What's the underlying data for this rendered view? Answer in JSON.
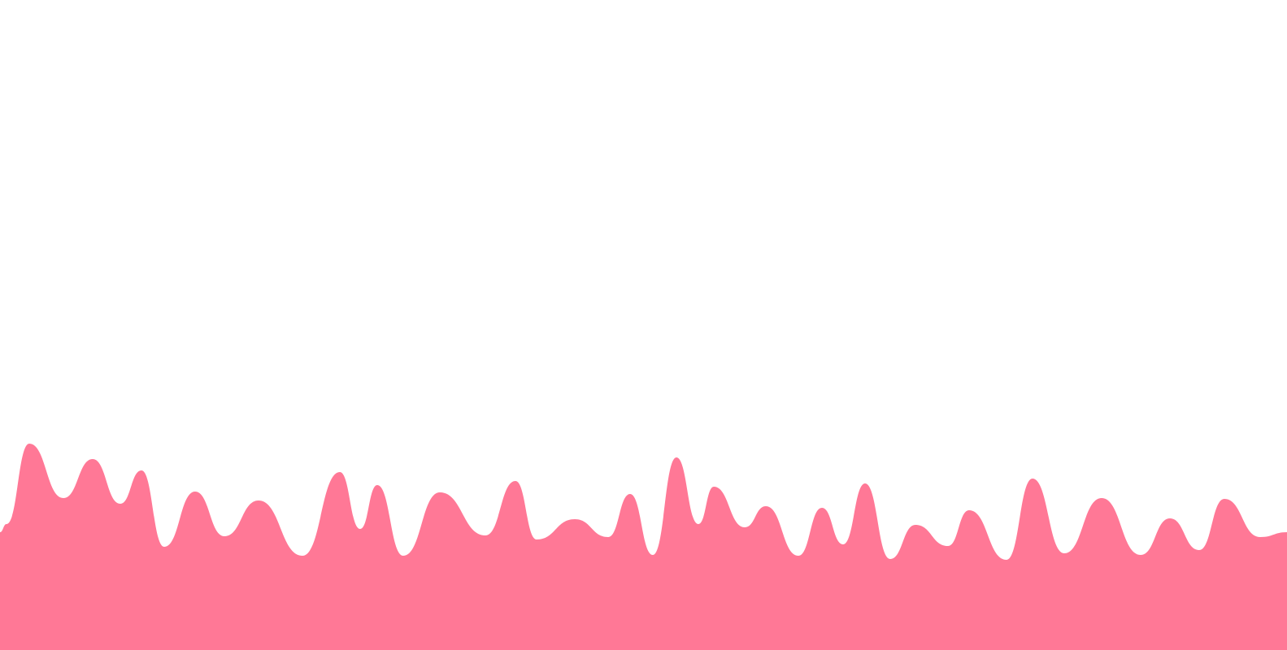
{
  "background_color": "#ffffff",
  "wave": {
    "fill_color": "#ff7896",
    "shape": "smooth wavy peaks along bottom edge"
  }
}
